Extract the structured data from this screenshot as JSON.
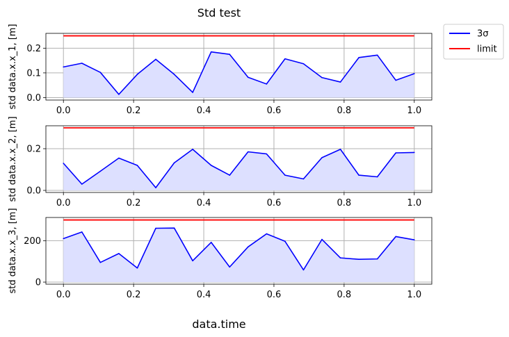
{
  "figure": {
    "title": "Std test",
    "xlabel": "data.time"
  },
  "legend": {
    "placement": "outside-top-right",
    "entries": [
      {
        "label": "3σ",
        "color": "#0000ff"
      },
      {
        "label": "limit",
        "color": "#ff0000"
      }
    ]
  },
  "colors": {
    "series": "#0000ff",
    "fill": "#dde0ff",
    "limit": "#ff0000",
    "grid": "#b0b0b0"
  },
  "chart_data": [
    {
      "type": "line",
      "ylabel": "std data.x.x_1, [m]",
      "xlim": [
        -0.05,
        1.05
      ],
      "ylim": [
        -0.01,
        0.26
      ],
      "xticks": [
        0.0,
        0.2,
        0.4,
        0.6,
        0.8,
        1.0
      ],
      "xtick_labels": [
        "0.0",
        "0.2",
        "0.4",
        "0.6",
        "0.8",
        "1.0"
      ],
      "yticks": [
        0.0,
        0.1,
        0.2
      ],
      "ytick_labels": [
        "0.0",
        "0.1",
        "0.2"
      ],
      "grid": true,
      "limit": 0.25,
      "x": [
        0.0,
        0.0526,
        0.1053,
        0.1579,
        0.2105,
        0.2632,
        0.3158,
        0.3684,
        0.4211,
        0.4737,
        0.5263,
        0.5789,
        0.6316,
        0.6842,
        0.7368,
        0.7895,
        0.8421,
        0.8947,
        0.9474,
        1.0
      ],
      "y": [
        0.124,
        0.139,
        0.102,
        0.013,
        0.094,
        0.155,
        0.094,
        0.021,
        0.185,
        0.175,
        0.082,
        0.055,
        0.157,
        0.137,
        0.081,
        0.063,
        0.162,
        0.172,
        0.07,
        0.097
      ]
    },
    {
      "type": "line",
      "ylabel": "std data.x.x_2, [m]",
      "xlim": [
        -0.05,
        1.05
      ],
      "ylim": [
        -0.01,
        0.31
      ],
      "xticks": [
        0.0,
        0.2,
        0.4,
        0.6,
        0.8,
        1.0
      ],
      "xtick_labels": [
        "0.0",
        "0.2",
        "0.4",
        "0.6",
        "0.8",
        "1.0"
      ],
      "yticks": [
        0.0,
        0.2
      ],
      "ytick_labels": [
        "0.0",
        "0.2"
      ],
      "grid": true,
      "limit": 0.3,
      "x": [
        0.0,
        0.0526,
        0.1053,
        0.1579,
        0.2105,
        0.2632,
        0.3158,
        0.3684,
        0.4211,
        0.4737,
        0.5263,
        0.5789,
        0.6316,
        0.6842,
        0.7368,
        0.7895,
        0.8421,
        0.8947,
        0.9474,
        1.0
      ],
      "y": [
        0.13,
        0.03,
        0.092,
        0.155,
        0.12,
        0.013,
        0.132,
        0.197,
        0.12,
        0.073,
        0.185,
        0.175,
        0.073,
        0.055,
        0.157,
        0.197,
        0.073,
        0.065,
        0.18,
        0.182
      ]
    },
    {
      "type": "line",
      "ylabel": "std data.x.x_3, [m]",
      "xlim": [
        -0.05,
        1.05
      ],
      "ylim": [
        -10,
        312
      ],
      "xticks": [
        0.0,
        0.2,
        0.4,
        0.6,
        0.8,
        1.0
      ],
      "xtick_labels": [
        "0.0",
        "0.2",
        "0.4",
        "0.6",
        "0.8",
        "1.0"
      ],
      "yticks": [
        0,
        200
      ],
      "ytick_labels": [
        "0",
        "200"
      ],
      "grid": true,
      "limit": 300,
      "x": [
        0.0,
        0.0526,
        0.1053,
        0.1579,
        0.2105,
        0.2632,
        0.3158,
        0.3684,
        0.4211,
        0.4737,
        0.5263,
        0.5789,
        0.6316,
        0.6842,
        0.7368,
        0.7895,
        0.8421,
        0.8947,
        0.9474,
        1.0
      ],
      "y": [
        210,
        242,
        95,
        138,
        68,
        260,
        261,
        103,
        192,
        73,
        170,
        233,
        197,
        59,
        206,
        117,
        110,
        112,
        220,
        204
      ]
    }
  ]
}
